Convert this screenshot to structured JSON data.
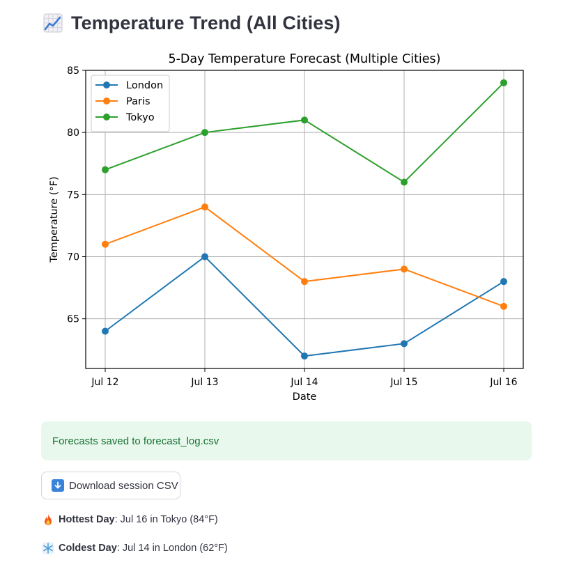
{
  "header": {
    "icon": "chart-increasing-icon",
    "title": "Temperature Trend (All Cities)"
  },
  "chart_data": {
    "type": "line",
    "title": "5-Day Temperature Forecast (Multiple Cities)",
    "xlabel": "Date",
    "ylabel": "Temperature (°F)",
    "categories": [
      "Jul 12",
      "Jul 13",
      "Jul 14",
      "Jul 15",
      "Jul 16"
    ],
    "ylim": [
      61,
      85
    ],
    "yticks": [
      65,
      70,
      75,
      80,
      85
    ],
    "grid": true,
    "legend_position": "top-left",
    "series": [
      {
        "name": "London",
        "color": "#1f77b4",
        "values": [
          64,
          70,
          62,
          63,
          68
        ]
      },
      {
        "name": "Paris",
        "color": "#ff7f0e",
        "values": [
          71,
          74,
          68,
          69,
          66
        ]
      },
      {
        "name": "Tokyo",
        "color": "#2ca02c",
        "values": [
          77,
          80,
          81,
          76,
          84
        ]
      }
    ]
  },
  "success": {
    "message": "Forecasts saved to forecast_log.csv",
    "color": "#177233"
  },
  "download": {
    "icon": "download-arrow-icon",
    "label": "Download session CSV"
  },
  "stats": {
    "hottest": {
      "icon": "fire-icon",
      "key": "Hottest Day",
      "value": ": Jul 16 in Tokyo (84°F)"
    },
    "coldest": {
      "icon": "snowflake-icon",
      "key": "Coldest Day",
      "value": ": Jul 14 in London (62°F)"
    }
  }
}
